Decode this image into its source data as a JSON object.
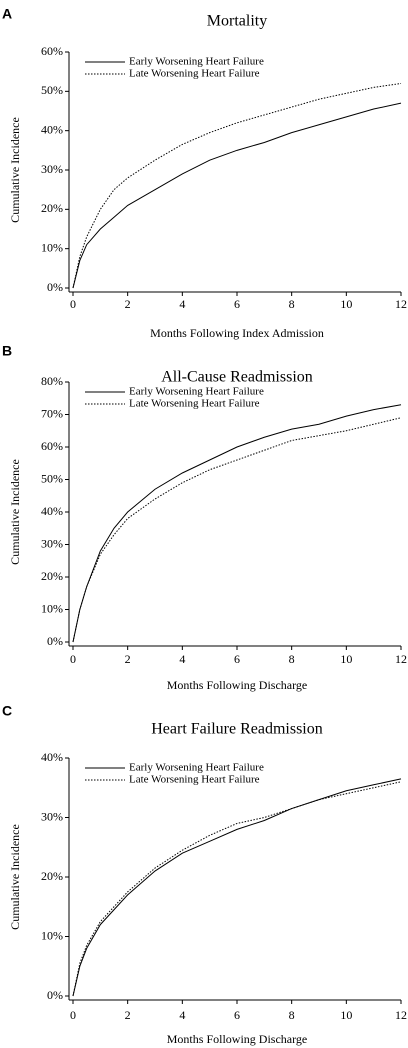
{
  "chart_data": [
    {
      "type": "line",
      "panel_label": "A",
      "title": "Mortality",
      "x_label": "Months Following Index Admission",
      "y_label": "Cumulative Incidence",
      "x": [
        0,
        0.25,
        0.5,
        1,
        1.5,
        2,
        3,
        4,
        5,
        6,
        7,
        8,
        9,
        10,
        11,
        12
      ],
      "series": [
        {
          "name": "Early Worsening Heart Failure",
          "color": "#000000",
          "dash": "solid",
          "values": [
            0,
            7,
            11,
            15,
            18,
            21,
            25,
            29,
            32.5,
            35,
            37,
            39.5,
            41.5,
            43.5,
            45.5,
            47
          ]
        },
        {
          "name": "Late Worsening Heart Failure",
          "color": "#000000",
          "dash": "dotted",
          "values": [
            0,
            8,
            13,
            20,
            25,
            28,
            32.5,
            36.5,
            39.5,
            42,
            44,
            46,
            48,
            49.5,
            51,
            52
          ]
        }
      ],
      "xlim": [
        0,
        12
      ],
      "xticks": [
        0,
        2,
        4,
        6,
        8,
        10,
        12
      ],
      "ylim": [
        0,
        60
      ],
      "yticks": [
        {
          "value": 0,
          "label": "0%"
        },
        {
          "value": 10,
          "label": "10%"
        },
        {
          "value": 20,
          "label": "20%"
        },
        {
          "value": 30,
          "label": "30%"
        },
        {
          "value": 40,
          "label": "40%"
        },
        {
          "value": 50,
          "label": "50%"
        },
        {
          "value": 60,
          "label": "60%"
        }
      ],
      "legend": "top-left"
    },
    {
      "type": "line",
      "panel_label": "B",
      "title": "All-Cause Readmission",
      "x_label": "Months Following Discharge",
      "y_label": "Cumulative Incidence",
      "x": [
        0,
        0.25,
        0.5,
        1,
        1.5,
        2,
        3,
        4,
        5,
        6,
        7,
        8,
        9,
        10,
        11,
        12
      ],
      "series": [
        {
          "name": "Early Worsening Heart Failure",
          "color": "#000000",
          "dash": "solid",
          "values": [
            0,
            10,
            17,
            28,
            35,
            40,
            47,
            52,
            56,
            60,
            63,
            65.5,
            67,
            69.5,
            71.5,
            73
          ]
        },
        {
          "name": "Late Worsening Heart Failure",
          "color": "#000000",
          "dash": "dotted",
          "values": [
            0,
            10,
            17,
            27,
            33,
            38,
            44,
            49,
            53,
            56,
            59,
            62,
            63.5,
            65,
            67,
            69
          ]
        }
      ],
      "xlim": [
        0,
        12
      ],
      "xticks": [
        0,
        2,
        4,
        6,
        8,
        10,
        12
      ],
      "ylim": [
        0,
        80
      ],
      "yticks": [
        {
          "value": 0,
          "label": "0%"
        },
        {
          "value": 10,
          "label": "10%"
        },
        {
          "value": 20,
          "label": "20%"
        },
        {
          "value": 30,
          "label": "30%"
        },
        {
          "value": 40,
          "label": "40%"
        },
        {
          "value": 50,
          "label": "50%"
        },
        {
          "value": 60,
          "label": "60%"
        },
        {
          "value": 70,
          "label": "70%"
        },
        {
          "value": 80,
          "label": "80%"
        }
      ],
      "legend": "top-left"
    },
    {
      "type": "line",
      "panel_label": "C",
      "title": "Heart Failure Readmission",
      "x_label": "Months Following Discharge",
      "y_label": "Cumulative Incidence",
      "x": [
        0,
        0.25,
        0.5,
        1,
        1.5,
        2,
        3,
        4,
        5,
        6,
        7,
        8,
        9,
        10,
        11,
        12
      ],
      "series": [
        {
          "name": "Early Worsening Heart Failure",
          "color": "#000000",
          "dash": "solid",
          "values": [
            0,
            5,
            8,
            12,
            14.5,
            17,
            21,
            24,
            26,
            28,
            29.5,
            31.5,
            33,
            34.5,
            35.5,
            36.5
          ]
        },
        {
          "name": "Late Worsening Heart Failure",
          "color": "#000000",
          "dash": "dotted",
          "values": [
            0,
            5.5,
            8.5,
            12.5,
            15,
            17.5,
            21.5,
            24.5,
            27,
            29,
            30,
            31.5,
            33,
            34,
            35,
            36
          ]
        }
      ],
      "xlim": [
        0,
        12
      ],
      "xticks": [
        0,
        2,
        4,
        6,
        8,
        10,
        12
      ],
      "ylim": [
        0,
        40
      ],
      "yticks": [
        {
          "value": 0,
          "label": "0%"
        },
        {
          "value": 10,
          "label": "10%"
        },
        {
          "value": 20,
          "label": "20%"
        },
        {
          "value": 30,
          "label": "30%"
        },
        {
          "value": 40,
          "label": "40%"
        }
      ],
      "legend": "top-left"
    }
  ]
}
